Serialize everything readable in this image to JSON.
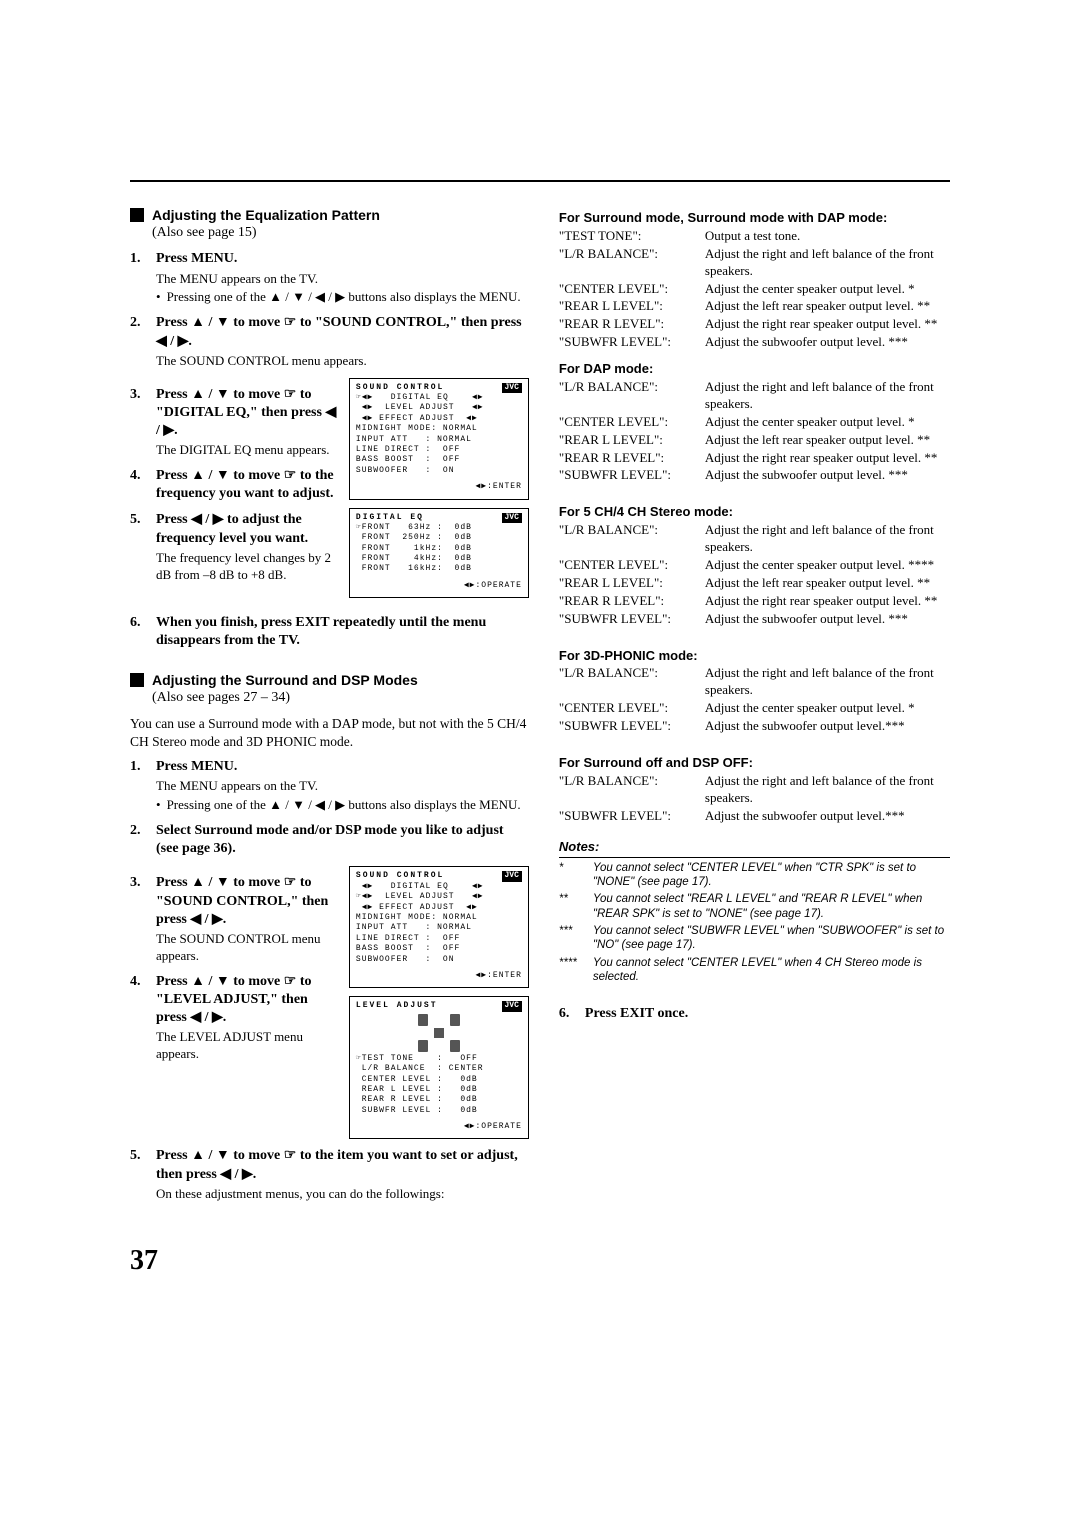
{
  "page_number": "37",
  "left": {
    "eq_heading": "Adjusting the Equalization Pattern",
    "eq_also": "(Also see page 15)",
    "steps_eq": {
      "s1_title": "Press MENU.",
      "s1_l1": "The MENU appears on the TV.",
      "s1_b1": "Pressing one of the ▲ / ▼ / ◀ / ▶ buttons also displays the MENU.",
      "s2_title": "Press ▲ / ▼ to move ☞ to \"SOUND CONTROL,\" then press ◀ / ▶.",
      "s2_l1": "The SOUND CONTROL menu appears.",
      "s3_title": "Press ▲ / ▼ to move ☞ to \"DIGITAL EQ,\" then press ◀ / ▶.",
      "s3_l1": "The DIGITAL EQ menu appears.",
      "s4_title": "Press ▲ / ▼ to move ☞ to the frequency you want to adjust.",
      "s5_title": "Press ◀ / ▶ to adjust the frequency level you want.",
      "s5_l1": "The frequency level changes by 2 dB from –8 dB to +8 dB.",
      "s6_title": "When you finish, press EXIT repeatedly until the menu disappears from the TV."
    },
    "surr_heading": "Adjusting the Surround and DSP Modes",
    "surr_also": "(Also see pages 27 – 34)",
    "surr_intro": "You can use a Surround mode with a DAP mode, but not with the 5 CH/4 CH Stereo mode and 3D PHONIC mode.",
    "steps_surr": {
      "s1_title": "Press MENU.",
      "s1_l1": "The MENU appears on the TV.",
      "s1_b1": "Pressing one of the ▲ / ▼ / ◀ / ▶ buttons also displays the MENU.",
      "s2_title": "Select Surround mode and/or DSP mode you like to adjust (see page 36).",
      "s3_title": "Press ▲ / ▼ to move ☞ to \"SOUND CONTROL,\" then press ◀ / ▶.",
      "s3_l1": "The SOUND CONTROL menu appears.",
      "s4_title": "Press ▲ / ▼ to move ☞ to \"LEVEL ADJUST,\" then press ◀ / ▶.",
      "s4_l1": "The LEVEL ADJUST menu appears.",
      "s5_title": "Press ▲ / ▼ to move ☞ to the item you want to set or adjust, then press ◀ / ▶.",
      "s5_l1": "On these adjustment menus, you can do the followings:"
    },
    "osd_sound_control": {
      "title": "SOUND CONTROL",
      "lines": [
        "☞◀▶   DIGITAL EQ    ◀▶",
        " ◀▶  LEVEL ADJUST   ◀▶",
        " ◀▶ EFFECT ADJUST  ◀▶",
        "MIDNIGHT MODE: NORMAL",
        "INPUT ATT   : NORMAL",
        "LINE DIRECT :  OFF",
        "BASS BOOST  :  OFF",
        "SUBWOOFER   :  ON"
      ],
      "enter": "◀▶:ENTER"
    },
    "osd_digital_eq": {
      "title": "DIGITAL EQ",
      "lines": [
        "☞FRONT   63Hz :  0dB",
        " FRONT  250Hz :  0dB",
        " FRONT    1kHz:  0dB",
        " FRONT    4kHz:  0dB",
        " FRONT   16kHz:  0dB"
      ],
      "enter": "◀▶:OPERATE"
    },
    "osd_sound_control2": {
      "title": "SOUND CONTROL",
      "lines": [
        " ◀▶   DIGITAL EQ    ◀▶",
        "☞◀▶  LEVEL ADJUST   ◀▶",
        " ◀▶ EFFECT ADJUST  ◀▶",
        "MIDNIGHT MODE: NORMAL",
        "INPUT ATT   : NORMAL",
        "LINE DIRECT :  OFF",
        "BASS BOOST  :  OFF",
        "SUBWOOFER   :  ON"
      ],
      "enter": "◀▶:ENTER"
    },
    "osd_level_adjust": {
      "title": "LEVEL ADJUST",
      "lines": [
        "☞TEST TONE    :   OFF",
        " L/R BALANCE  : CENTER",
        " CENTER LEVEL :   0dB",
        " REAR L LEVEL :   0dB",
        " REAR R LEVEL :   0dB",
        " SUBWFR LEVEL :   0dB"
      ],
      "enter": "◀▶:OPERATE"
    }
  },
  "right": {
    "sec1_title": "For Surround mode, Surround mode with DAP mode:",
    "sec1": [
      [
        "\"TEST TONE\":",
        "Output a test tone."
      ],
      [
        "\"L/R BALANCE\":",
        "Adjust the right and left balance of the front speakers."
      ],
      [
        "\"CENTER LEVEL\":",
        "Adjust the center speaker output level. *"
      ],
      [
        "\"REAR L LEVEL\":",
        "Adjust the left rear speaker output level. **"
      ],
      [
        "\"REAR R LEVEL\":",
        "Adjust the right rear speaker output level. **"
      ],
      [
        "\"SUBWFR LEVEL\":",
        "Adjust the subwoofer output level. ***"
      ]
    ],
    "sec2_title": "For DAP mode:",
    "sec2": [
      [
        "\"L/R BALANCE\":",
        "Adjust the right and left balance of the front speakers."
      ],
      [
        "\"CENTER LEVEL\":",
        "Adjust the center speaker output level. *"
      ],
      [
        "\"REAR L LEVEL\":",
        "Adjust the left rear speaker output level. **"
      ],
      [
        "\"REAR R LEVEL\":",
        "Adjust the right rear speaker output level. **"
      ],
      [
        "\"SUBWFR LEVEL\":",
        "Adjust the subwoofer output level. ***"
      ]
    ],
    "sec3_title": "For 5 CH/4 CH Stereo mode:",
    "sec3": [
      [
        "\"L/R BALANCE\":",
        "Adjust the right and left balance of the front speakers."
      ],
      [
        "\"CENTER LEVEL\":",
        "Adjust the center speaker output level. ****"
      ],
      [
        "\"REAR L LEVEL\":",
        "Adjust the left rear speaker output level. **"
      ],
      [
        "\"REAR R LEVEL\":",
        "Adjust the right rear speaker output level. **"
      ],
      [
        "\"SUBWFR LEVEL\":",
        "Adjust the subwoofer output level. ***"
      ]
    ],
    "sec4_title": "For 3D-PHONIC mode:",
    "sec4": [
      [
        "\"L/R BALANCE\":",
        "Adjust the right and left balance of the front speakers."
      ],
      [
        "\"CENTER LEVEL\":",
        "Adjust the center speaker output level. *"
      ],
      [
        "\"SUBWFR LEVEL\":",
        "Adjust the subwoofer output level.***"
      ]
    ],
    "sec5_title": "For Surround off and DSP OFF:",
    "sec5": [
      [
        "\"L/R BALANCE\":",
        "Adjust the right and left balance of the front speakers."
      ],
      [
        "\"SUBWFR LEVEL\":",
        "Adjust the subwoofer output level.***"
      ]
    ],
    "notes_title": "Notes:",
    "notes": [
      [
        "*",
        "You cannot select \"CENTER LEVEL\" when \"CTR SPK\" is set to \"NONE\" (see page 17)."
      ],
      [
        "**",
        "You cannot select \"REAR L LEVEL\" and \"REAR R LEVEL\" when \"REAR SPK\" is set to \"NONE\" (see page 17)."
      ],
      [
        "***",
        "You cannot select \"SUBWFR LEVEL\" when \"SUBWOOFER\" is set to \"NO\" (see page 17)."
      ],
      [
        "****",
        "You cannot select \"CENTER LEVEL\" when 4 CH Stereo mode is selected."
      ]
    ],
    "step6": "Press EXIT once."
  }
}
